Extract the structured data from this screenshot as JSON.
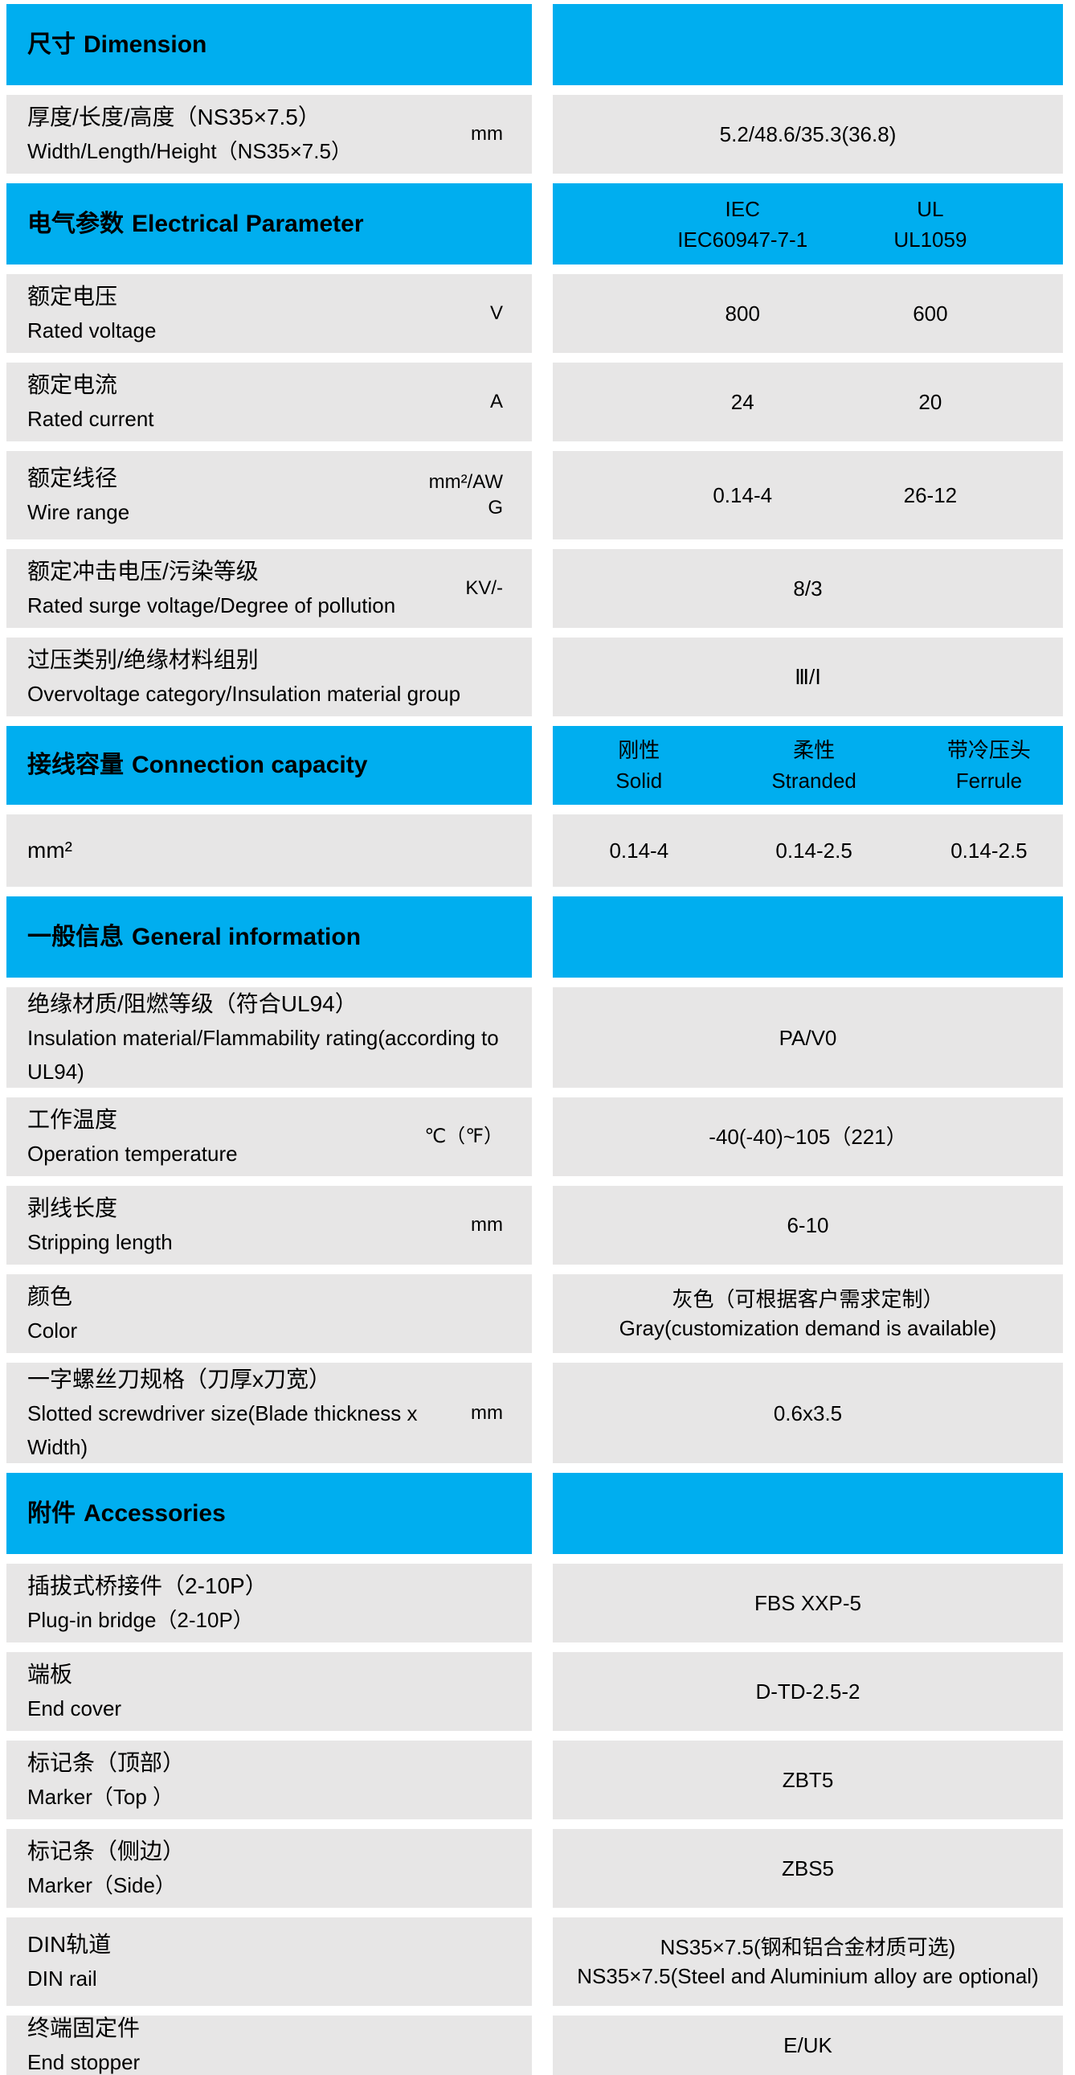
{
  "meta": {
    "colors": {
      "accent": "#00AEEF",
      "row_bg": "#E7E6E6",
      "text": "#000000",
      "page_bg": "#FFFFFF"
    }
  },
  "table": {
    "rows": [
      {
        "kind": "head",
        "zh": "尺寸",
        "en": "Dimension",
        "cols": [],
        "h": 101
      },
      {
        "kind": "row",
        "zh": "厚度/长度/高度（NS35×7.5）",
        "en": "Width/Length/Height（NS35×7.5）",
        "unit": "mm",
        "values": [
          "5.2/48.6/35.3(36.8)"
        ],
        "h": 98
      },
      {
        "kind": "head",
        "zh": "电气参数",
        "en": "Electrical Parameter",
        "cols": [
          {
            "top": "IEC",
            "bottom": "IEC60947-7-1"
          },
          {
            "top": "UL",
            "bottom": "UL1059"
          }
        ],
        "h": 101
      },
      {
        "kind": "row",
        "zh": "额定电压",
        "en": "Rated voltage",
        "unit": "V",
        "values": [
          "800",
          "600"
        ],
        "h": 98
      },
      {
        "kind": "row",
        "zh": "额定电流",
        "en": "Rated current",
        "unit": "A",
        "values": [
          "24",
          "20"
        ],
        "h": 98
      },
      {
        "kind": "row",
        "zh": "额定线径",
        "en": "Wire range",
        "unit": "mm²/AWG",
        "values": [
          "0.14-4",
          "26-12"
        ],
        "h": 110
      },
      {
        "kind": "row",
        "zh": "额定冲击电压/污染等级",
        "en": "Rated surge voltage/Degree of pollution",
        "unit": "KV/-",
        "values": [
          "8/3"
        ],
        "h": 98
      },
      {
        "kind": "row",
        "zh": "过压类别/绝缘材料组别",
        "en": "Overvoltage category/Insulation material group",
        "unit": "",
        "values": [
          "Ⅲ/Ⅰ"
        ],
        "h": 98
      },
      {
        "kind": "head",
        "zh": "接线容量",
        "en": "Connection capacity",
        "cols": [
          {
            "top": "刚性",
            "bottom": "Solid"
          },
          {
            "top": "柔性",
            "bottom": "Stranded"
          },
          {
            "top": "带冷压头",
            "bottom": "Ferrule"
          }
        ],
        "h": 98
      },
      {
        "kind": "row",
        "zh": "mm²",
        "en": "",
        "unit": "",
        "values": [
          "0.14-4",
          "0.14-2.5",
          "0.14-2.5"
        ],
        "h": 90
      },
      {
        "kind": "head",
        "zh": "一般信息",
        "en": "General information",
        "cols": [],
        "h": 101
      },
      {
        "kind": "row",
        "zh": "绝缘材质/阻燃等级（符合UL94）",
        "en": "Insulation material/Flammability rating(according to UL94)",
        "unit": "",
        "values": [
          "PA/V0"
        ],
        "h": 125
      },
      {
        "kind": "row",
        "zh": "工作温度",
        "en": "Operation temperature",
        "unit": "℃（℉）",
        "values": [
          "-40(-40)~105（221）"
        ],
        "h": 98
      },
      {
        "kind": "row",
        "zh": "剥线长度",
        "en": "Stripping length",
        "unit": "mm",
        "values": [
          "6-10"
        ],
        "h": 98
      },
      {
        "kind": "row",
        "zh": "颜色",
        "en": "Color",
        "unit": "",
        "values": [
          "灰色（可根据客户需求定制）\nGray(customization demand is available)"
        ],
        "h": 98
      },
      {
        "kind": "row",
        "zh": "一字螺丝刀规格（刀厚x刀宽）",
        "en": "Slotted screwdriver size(Blade thickness x Width)",
        "unit": "mm",
        "values": [
          "0.6x3.5"
        ],
        "h": 125
      },
      {
        "kind": "head",
        "zh": "附件",
        "en": "Accessories",
        "cols": [],
        "h": 101
      },
      {
        "kind": "row",
        "zh": "插拔式桥接件（2-10P）",
        "en": "Plug-in bridge（2-10P）",
        "unit": "",
        "values": [
          "FBS XXP-5"
        ],
        "h": 98
      },
      {
        "kind": "row",
        "zh": "端板",
        "en": "End cover",
        "unit": "",
        "values": [
          "D-TD-2.5-2"
        ],
        "h": 98
      },
      {
        "kind": "row",
        "zh": "标记条（顶部）",
        "en": "Marker（Top ）",
        "unit": "",
        "values": [
          "ZBT5"
        ],
        "h": 98
      },
      {
        "kind": "row",
        "zh": "标记条（侧边）",
        "en": "Marker（Side）",
        "unit": "",
        "values": [
          "ZBS5"
        ],
        "h": 98
      },
      {
        "kind": "row",
        "zh": "DIN轨道",
        "en": "DIN rail",
        "unit": "",
        "values": [
          "NS35×7.5(钢和铝合金材质可选)\nNS35×7.5(Steel and Aluminium alloy are optional)"
        ],
        "h": 110
      },
      {
        "kind": "row",
        "zh": "终端固定件",
        "en": "End stopper",
        "unit": "",
        "values": [
          "E/UK"
        ],
        "h": 74
      }
    ]
  }
}
